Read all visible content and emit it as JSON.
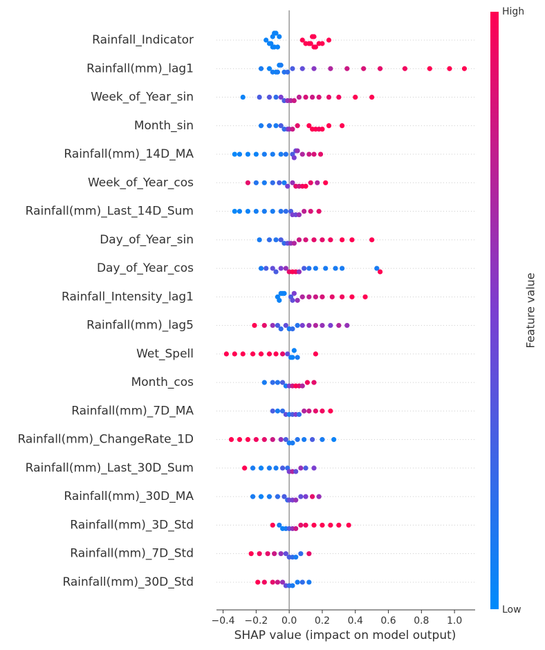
{
  "chart_data": {
    "type": "beeswarm",
    "xlabel": "SHAP value (impact on model output)",
    "xlim": [
      -0.44,
      1.125
    ],
    "xticks": [
      {
        "value": -0.4,
        "label": "−0.4"
      },
      {
        "value": -0.2,
        "label": "−0.2"
      },
      {
        "value": 0.0,
        "label": "0.0"
      },
      0.2,
      0.4,
      0.6,
      0.8,
      {
        "value": 1.0,
        "label": "1.0"
      }
    ],
    "colorbar": {
      "label": "Feature value",
      "high": "High",
      "low": "Low",
      "colors": [
        "#008bfb",
        "#7b3fd0",
        "#ff0052"
      ]
    },
    "series": [
      {
        "name": "Rainfall_Indicator",
        "values": [
          -0.14,
          -0.12,
          -0.11,
          -0.1,
          -0.1,
          -0.09,
          -0.09,
          -0.08,
          -0.07,
          -0.06,
          0.08,
          0.1,
          0.12,
          0.13,
          0.14,
          0.15,
          0.15,
          0.16,
          0.18,
          0.2,
          0.24
        ],
        "feature_values": [
          0.05,
          0.05,
          0.05,
          0.05,
          0.05,
          0.05,
          0.05,
          0.05,
          0.05,
          0.05,
          1,
          1,
          1,
          1,
          1,
          1,
          1,
          1,
          1,
          1,
          1
        ]
      },
      {
        "name": "Rainfall(mm)_lag1",
        "values": [
          -0.17,
          -0.12,
          -0.1,
          -0.08,
          -0.07,
          -0.06,
          -0.05,
          -0.03,
          -0.01,
          0.02,
          0.08,
          0.15,
          0.25,
          0.35,
          0.45,
          0.55,
          0.7,
          0.85,
          0.97,
          1.06
        ],
        "feature_values": [
          0.1,
          0.05,
          0.1,
          0.05,
          0.1,
          0.05,
          0.1,
          0.15,
          0.2,
          0.3,
          0.4,
          0.55,
          0.7,
          0.8,
          0.85,
          0.9,
          0.95,
          1,
          1,
          1
        ]
      },
      {
        "name": "Week_of_Year_sin",
        "values": [
          -0.28,
          -0.18,
          -0.12,
          -0.08,
          -0.05,
          -0.03,
          -0.01,
          0.01,
          0.03,
          0.06,
          0.1,
          0.14,
          0.18,
          0.24,
          0.3,
          0.4,
          0.5
        ],
        "feature_values": [
          0.05,
          0.3,
          0.35,
          0.2,
          0.5,
          0.3,
          0.6,
          0.7,
          0.8,
          0.75,
          0.85,
          0.8,
          0.85,
          0.9,
          0.95,
          1,
          1
        ]
      },
      {
        "name": "Month_sin",
        "values": [
          -0.17,
          -0.12,
          -0.08,
          -0.05,
          -0.03,
          -0.01,
          0.0,
          0.02,
          0.05,
          0.12,
          0.14,
          0.16,
          0.18,
          0.2,
          0.24,
          0.32
        ],
        "feature_values": [
          0.1,
          0.15,
          0.1,
          0.3,
          0.2,
          0.4,
          0.6,
          0.8,
          0.9,
          1,
          1,
          1,
          0.95,
          1,
          1,
          1
        ]
      },
      {
        "name": "Rainfall(mm)_14D_MA",
        "values": [
          -0.33,
          -0.3,
          -0.25,
          -0.2,
          -0.15,
          -0.1,
          -0.05,
          -0.02,
          0.02,
          0.03,
          0.04,
          0.05,
          0.08,
          0.12,
          0.15,
          0.19
        ],
        "feature_values": [
          0.02,
          0.05,
          0.05,
          0.05,
          0.1,
          0.1,
          0.1,
          0.15,
          0.3,
          0.5,
          0.4,
          0.6,
          0.7,
          0.8,
          0.85,
          0.9
        ]
      },
      {
        "name": "Week_of_Year_cos",
        "values": [
          -0.25,
          -0.2,
          -0.15,
          -0.1,
          -0.06,
          -0.03,
          -0.01,
          0.02,
          0.04,
          0.06,
          0.08,
          0.1,
          0.13,
          0.17,
          0.22
        ],
        "feature_values": [
          0.9,
          0.15,
          0.1,
          0.2,
          0.3,
          0.1,
          0.5,
          0.6,
          0.9,
          0.8,
          0.95,
          1,
          0.9,
          0.7,
          1
        ]
      },
      {
        "name": "Rainfall(mm)_Last_14D_Sum",
        "values": [
          -0.33,
          -0.3,
          -0.25,
          -0.2,
          -0.15,
          -0.1,
          -0.05,
          -0.02,
          0.01,
          0.02,
          0.04,
          0.06,
          0.09,
          0.13,
          0.18
        ],
        "feature_values": [
          0.02,
          0.05,
          0.05,
          0.08,
          0.1,
          0.1,
          0.15,
          0.2,
          0.3,
          0.5,
          0.45,
          0.6,
          0.75,
          0.85,
          0.9
        ]
      },
      {
        "name": "Day_of_Year_sin",
        "values": [
          -0.18,
          -0.12,
          -0.08,
          -0.05,
          -0.03,
          -0.01,
          0.01,
          0.03,
          0.06,
          0.1,
          0.15,
          0.2,
          0.25,
          0.32,
          0.38,
          0.5
        ],
        "feature_values": [
          0.1,
          0.2,
          0.15,
          0.3,
          0.2,
          0.4,
          0.6,
          0.7,
          0.8,
          0.85,
          0.9,
          0.9,
          0.95,
          1,
          1,
          1
        ]
      },
      {
        "name": "Day_of_Year_cos",
        "values": [
          -0.17,
          -0.14,
          -0.1,
          -0.08,
          -0.05,
          -0.02,
          0.0,
          0.02,
          0.04,
          0.06,
          0.09,
          0.12,
          0.16,
          0.22,
          0.28,
          0.32,
          0.53,
          0.55
        ],
        "feature_values": [
          0.1,
          0.3,
          0.4,
          0.3,
          0.5,
          0.6,
          0.9,
          1,
          0.95,
          0.6,
          0.3,
          0.15,
          0.1,
          0.1,
          0.1,
          0.1,
          0.1,
          1
        ]
      },
      {
        "name": "Rainfall_Intensity_lag1",
        "values": [
          -0.07,
          -0.06,
          -0.05,
          -0.04,
          -0.03,
          0.01,
          0.02,
          0.03,
          0.05,
          0.08,
          0.12,
          0.16,
          0.2,
          0.26,
          0.32,
          0.38,
          0.46
        ],
        "feature_values": [
          0.05,
          0.05,
          0.05,
          0.05,
          0.05,
          0.3,
          0.4,
          0.5,
          0.6,
          0.7,
          0.75,
          0.8,
          0.85,
          0.9,
          0.95,
          1,
          1
        ]
      },
      {
        "name": "Rainfall(mm)_lag5",
        "values": [
          -0.21,
          -0.15,
          -0.1,
          -0.07,
          -0.05,
          -0.02,
          0.0,
          0.02,
          0.05,
          0.08,
          0.12,
          0.16,
          0.2,
          0.25,
          0.3,
          0.35
        ],
        "feature_values": [
          1,
          0.9,
          0.6,
          0.3,
          0.2,
          0.4,
          0.1,
          0.2,
          0.15,
          0.5,
          0.6,
          0.7,
          0.6,
          0.5,
          0.7,
          0.6
        ]
      },
      {
        "name": "Wet_Spell",
        "values": [
          -0.38,
          -0.33,
          -0.28,
          -0.22,
          -0.17,
          -0.12,
          -0.08,
          -0.04,
          -0.01,
          0.01,
          0.02,
          0.03,
          0.05,
          0.16
        ],
        "feature_values": [
          1,
          1,
          1,
          1,
          1,
          1,
          1,
          0.9,
          0.4,
          0.05,
          0.05,
          0.05,
          0.1,
          1
        ]
      },
      {
        "name": "Month_cos",
        "values": [
          -0.15,
          -0.1,
          -0.07,
          -0.04,
          -0.02,
          0.0,
          0.02,
          0.04,
          0.06,
          0.08,
          0.11,
          0.15
        ],
        "feature_values": [
          0.1,
          0.2,
          0.15,
          0.3,
          0.1,
          0.5,
          0.8,
          1,
          0.9,
          0.7,
          0.95,
          0.9
        ]
      },
      {
        "name": "Rainfall(mm)_7D_MA",
        "values": [
          -0.1,
          -0.07,
          -0.04,
          -0.02,
          0.0,
          0.02,
          0.04,
          0.06,
          0.09,
          0.12,
          0.16,
          0.2,
          0.25
        ],
        "feature_values": [
          0.3,
          0.1,
          0.2,
          0.4,
          0.1,
          0.3,
          0.5,
          0.2,
          0.7,
          0.8,
          0.9,
          0.95,
          1
        ]
      },
      {
        "name": "Rainfall(mm)_ChangeRate_1D",
        "values": [
          -0.35,
          -0.3,
          -0.25,
          -0.2,
          -0.15,
          -0.1,
          -0.05,
          -0.02,
          0.0,
          0.02,
          0.05,
          0.09,
          0.14,
          0.2,
          0.27
        ],
        "feature_values": [
          1,
          1,
          1,
          0.95,
          0.9,
          0.8,
          0.6,
          0.3,
          0.1,
          0.1,
          0.15,
          0.1,
          0.3,
          0.1,
          0.05
        ]
      },
      {
        "name": "Rainfall(mm)_Last_30D_Sum",
        "values": [
          -0.27,
          -0.22,
          -0.17,
          -0.12,
          -0.08,
          -0.04,
          -0.01,
          0.0,
          0.02,
          0.04,
          0.07,
          0.1,
          0.15
        ],
        "feature_values": [
          1,
          0.1,
          0.05,
          0.1,
          0.1,
          0.3,
          0.2,
          0.5,
          0.7,
          0.4,
          0.6,
          0.3,
          0.5
        ]
      },
      {
        "name": "Rainfall(mm)_30D_MA",
        "values": [
          -0.22,
          -0.17,
          -0.12,
          -0.07,
          -0.03,
          -0.01,
          0.0,
          0.02,
          0.04,
          0.07,
          0.1,
          0.14,
          0.18
        ],
        "feature_values": [
          0.1,
          0.05,
          0.1,
          0.2,
          0.3,
          0.2,
          0.4,
          0.5,
          0.6,
          0.4,
          0.5,
          0.9,
          0.6
        ]
      },
      {
        "name": "Rainfall(mm)_3D_Std",
        "values": [
          -0.1,
          -0.06,
          -0.04,
          -0.02,
          0.0,
          0.02,
          0.04,
          0.07,
          0.1,
          0.15,
          0.2,
          0.25,
          0.3,
          0.36
        ],
        "feature_values": [
          1,
          0.1,
          0.05,
          0.1,
          0.3,
          0.6,
          0.8,
          0.9,
          0.95,
          1,
          1,
          1,
          1,
          1
        ]
      },
      {
        "name": "Rainfall(mm)_7D_Std",
        "values": [
          -0.23,
          -0.18,
          -0.13,
          -0.09,
          -0.05,
          -0.02,
          0.0,
          0.02,
          0.04,
          0.07,
          0.12
        ],
        "feature_values": [
          1,
          0.95,
          0.9,
          0.8,
          0.6,
          0.4,
          0.3,
          0.2,
          0.1,
          0.2,
          0.9
        ]
      },
      {
        "name": "Rainfall(mm)_30D_Std",
        "values": [
          -0.19,
          -0.15,
          -0.1,
          -0.07,
          -0.04,
          -0.02,
          0.0,
          0.02,
          0.05,
          0.08,
          0.12
        ],
        "feature_values": [
          1,
          0.95,
          0.9,
          0.8,
          0.6,
          0.4,
          0.2,
          0.1,
          0.1,
          0.2,
          0.1
        ]
      }
    ]
  }
}
